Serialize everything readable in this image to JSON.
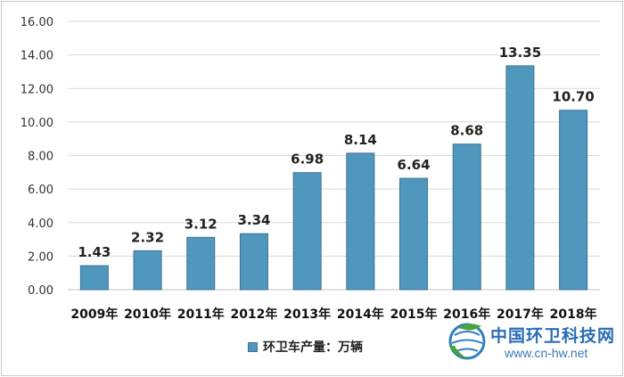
{
  "chart_data": {
    "type": "bar",
    "categories": [
      "2009年",
      "2010年",
      "2011年",
      "2012年",
      "2013年",
      "2014年",
      "2015年",
      "2016年",
      "2017年",
      "2018年"
    ],
    "series": [
      {
        "name": "环卫车产量：万辆",
        "values": [
          1.43,
          2.32,
          3.12,
          3.34,
          6.98,
          8.14,
          6.64,
          8.68,
          13.35,
          10.7
        ],
        "labels": [
          "1.43",
          "2.32",
          "3.12",
          "3.34",
          "6.98",
          "8.14",
          "6.64",
          "8.68",
          "13.35",
          "10.70"
        ]
      }
    ],
    "yticks": [
      "0.00",
      "2.00",
      "4.00",
      "6.00",
      "8.00",
      "10.00",
      "12.00",
      "14.00",
      "16.00"
    ],
    "ylim": [
      0,
      16
    ],
    "grid": true,
    "legend_position": "bottom",
    "colors": {
      "bar": "#4f97bd",
      "bar_edge": "#3c7393",
      "grid": "#d9d9d9"
    }
  },
  "legend": {
    "label": "环卫车产量：万辆"
  },
  "watermark": {
    "name": "中国环卫科技网",
    "url": "www.cn-hw.net"
  }
}
